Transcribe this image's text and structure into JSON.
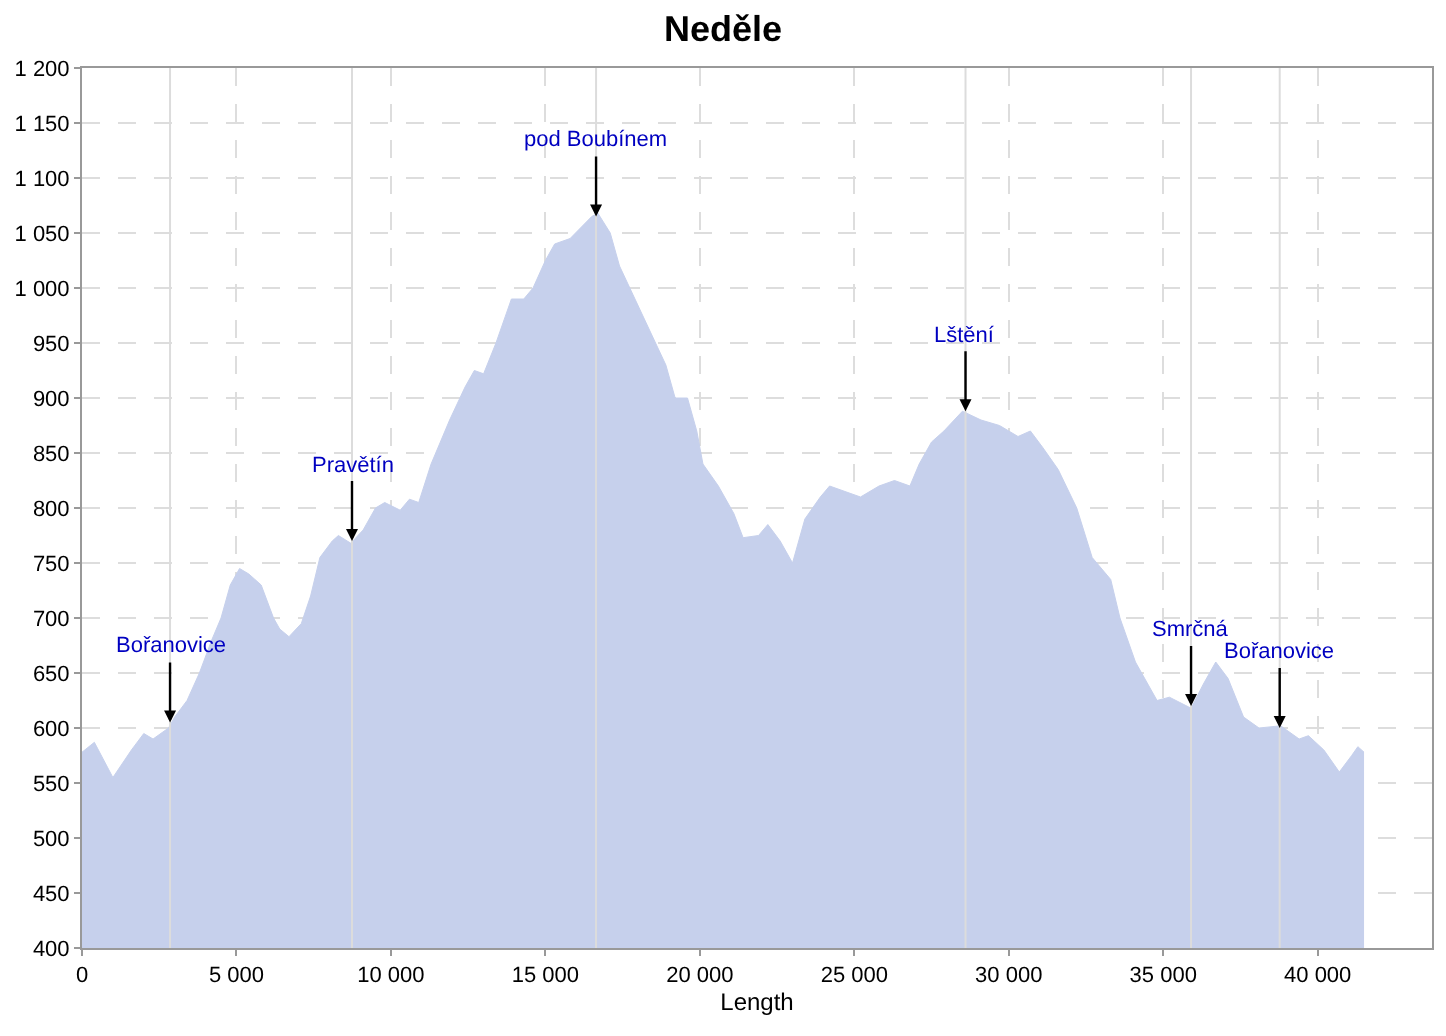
{
  "chart_data": {
    "type": "area",
    "title": "Neděle",
    "xlabel": "Length",
    "x": [
      0,
      400,
      1000,
      1600,
      2000,
      2300,
      2800,
      3000,
      3400,
      3800,
      4200,
      4500,
      4800,
      5100,
      5400,
      5800,
      6200,
      6400,
      6700,
      7100,
      7400,
      7700,
      8100,
      8300,
      8700,
      9100,
      9500,
      9800,
      10300,
      10600,
      10900,
      11300,
      11600,
      11900,
      12400,
      12700,
      13000,
      13400,
      13900,
      14300,
      14600,
      15000,
      15300,
      15800,
      16500,
      16700,
      17100,
      17400,
      17900,
      18400,
      18900,
      19200,
      19600,
      19900,
      20100,
      20600,
      21100,
      21400,
      21900,
      22200,
      22600,
      23000,
      23400,
      23900,
      24200,
      25200,
      25800,
      26300,
      26800,
      27100,
      27500,
      27900,
      28500,
      29100,
      29700,
      30300,
      30700,
      31100,
      31600,
      32200,
      32700,
      33300,
      33600,
      34100,
      34800,
      35200,
      35900,
      36300,
      36700,
      37100,
      37600,
      38100,
      38800,
      39400,
      39700,
      40200,
      40700,
      41100,
      41300,
      41500
    ],
    "series": [
      {
        "color": "#c6d0ec",
        "values": [
          578,
          587,
          555,
          580,
          595,
          590,
          600,
          610,
          625,
          650,
          680,
          700,
          730,
          745,
          740,
          730,
          700,
          690,
          683,
          695,
          720,
          755,
          770,
          775,
          768,
          780,
          800,
          805,
          798,
          808,
          805,
          840,
          860,
          880,
          910,
          925,
          922,
          950,
          990,
          990,
          1000,
          1025,
          1040,
          1045,
          1065,
          1068,
          1050,
          1020,
          990,
          960,
          930,
          900,
          900,
          870,
          840,
          820,
          795,
          773,
          775,
          785,
          770,
          750,
          790,
          810,
          820,
          810,
          820,
          825,
          820,
          840,
          860,
          870,
          888,
          880,
          875,
          865,
          870,
          855,
          835,
          800,
          755,
          735,
          700,
          660,
          625,
          628,
          618,
          640,
          660,
          645,
          610,
          600,
          602,
          590,
          593,
          580,
          560,
          575,
          583,
          578
        ]
      }
    ],
    "xlim": [
      0,
      43700
    ],
    "xticks": [
      {
        "value": 0,
        "label": "0"
      },
      {
        "value": 5000,
        "label": "5 000"
      },
      {
        "value": 10000,
        "label": "10 000"
      },
      {
        "value": 15000,
        "label": "15 000"
      },
      {
        "value": 20000,
        "label": "20 000"
      },
      {
        "value": 25000,
        "label": "25 000"
      },
      {
        "value": 30000,
        "label": "30 000"
      },
      {
        "value": 35000,
        "label": "35 000"
      },
      {
        "value": 40000,
        "label": "40 000"
      }
    ],
    "ylim": [
      400,
      1200
    ],
    "yticks": [
      400,
      450,
      500,
      550,
      600,
      650,
      700,
      750,
      800,
      850,
      900,
      950,
      {
        "value": 1000,
        "label": "1 000"
      },
      {
        "value": 1050,
        "label": "1 050"
      },
      {
        "value": 1100,
        "label": "1 100"
      },
      {
        "value": 1150,
        "label": "1 150"
      },
      {
        "value": 1200,
        "label": "1 200"
      }
    ],
    "grid": true,
    "ref_lines": [
      {
        "axis": "x",
        "value": 2850,
        "color": "#dcdcdc"
      },
      {
        "axis": "x",
        "value": 8740,
        "color": "#dcdcdc"
      },
      {
        "axis": "x",
        "value": 16640,
        "color": "#dcdcdc"
      },
      {
        "axis": "x",
        "value": 28600,
        "color": "#dcdcdc"
      },
      {
        "axis": "x",
        "value": 35900,
        "color": "#dcdcdc"
      },
      {
        "axis": "x",
        "value": 38770,
        "color": "#dcdcdc"
      }
    ],
    "annotations": [
      {
        "text": "Bořanovice",
        "x": 2850,
        "y": 605
      },
      {
        "text": "Pravětín",
        "x": 8740,
        "y": 770
      },
      {
        "text": "pod Boubínem",
        "x": 16640,
        "y": 1065
      },
      {
        "text": "Lštění",
        "x": 28600,
        "y": 888
      },
      {
        "text": "Smrčná",
        "x": 35900,
        "y": 620
      },
      {
        "text": "Bořanovice",
        "x": 38770,
        "y": 600
      }
    ]
  }
}
